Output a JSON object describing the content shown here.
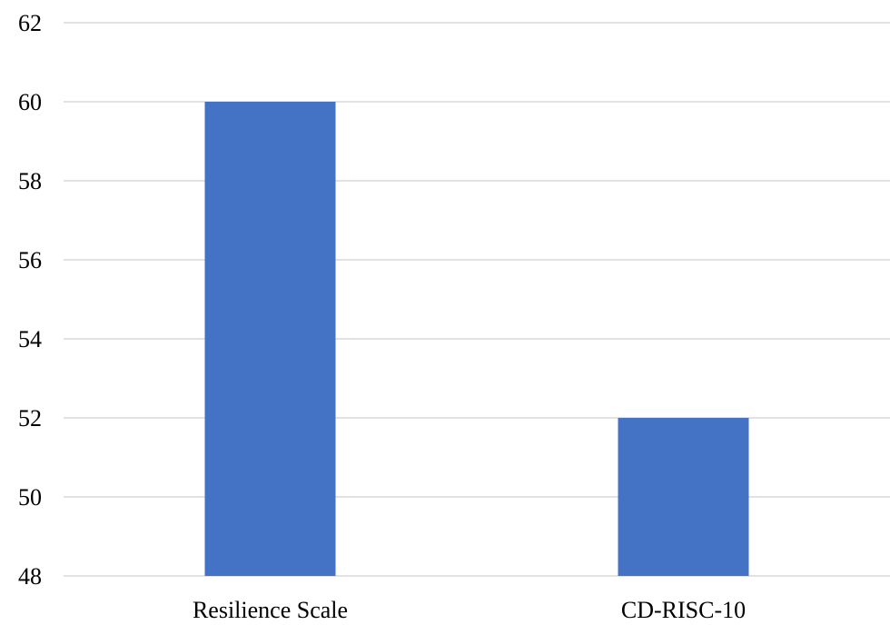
{
  "chart_data": {
    "type": "bar",
    "title": "",
    "xlabel": "",
    "ylabel": "",
    "categories": [
      "Resilience Scale",
      "CD-RISC-10"
    ],
    "values": [
      60,
      52
    ],
    "ylim": [
      48,
      62
    ],
    "yticks": [
      48,
      50,
      52,
      54,
      56,
      58,
      60,
      62
    ],
    "grid": true,
    "legend": "none",
    "bar_color": "#4472c4"
  }
}
